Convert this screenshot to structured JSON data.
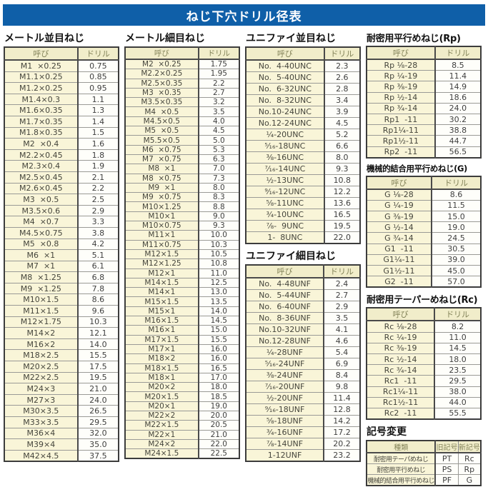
{
  "title": "ねじ下穴ドリル径表",
  "colors": {
    "banner_blue": "#0f5fa8",
    "name_cell_bg": "#f9f5d8",
    "header_cell_bg": "#f1edca",
    "border_dark": "#3c3c3c"
  },
  "tables": {
    "metric_coarse": {
      "title": "メートル並目ねじ",
      "headers": [
        "呼び",
        "ドリル"
      ],
      "rows": [
        [
          "M1  ×0.25",
          "0.75"
        ],
        [
          "M1.1×0.25",
          "0.85"
        ],
        [
          "M1.2×0.25",
          "0.95"
        ],
        [
          "M1.4×0.3",
          "1.1"
        ],
        [
          "M1.6×0.35",
          "1.3"
        ],
        [
          "M1.7×0.35",
          "1.4"
        ],
        [
          "M1.8×0.35",
          "1.5"
        ],
        [
          "M2  ×0.4",
          "1.6"
        ],
        [
          "M2.2×0.45",
          "1.8"
        ],
        [
          "M2.3×0.4",
          "1.9"
        ],
        [
          "M2.5×0.45",
          "2.1"
        ],
        [
          "M2.6×0.45",
          "2.2"
        ],
        [
          "M3  ×0.5",
          "2.5"
        ],
        [
          "M3.5×0.6",
          "2.9"
        ],
        [
          "M4  ×0.7",
          "3.3"
        ],
        [
          "M4.5×0.75",
          "3.8"
        ],
        [
          "M5  ×0.8",
          "4.2"
        ],
        [
          "M6  ×1",
          "5.1"
        ],
        [
          "M7  ×1",
          "6.1"
        ],
        [
          "M8  ×1.25",
          "6.8"
        ],
        [
          "M9  ×1.25",
          "7.8"
        ],
        [
          "M10×1.5",
          "8.6"
        ],
        [
          "M11×1.5",
          "9.6"
        ],
        [
          "M12×1.75",
          "10.3"
        ],
        [
          "M14×2",
          "12.1"
        ],
        [
          "M16×2",
          "14.0"
        ],
        [
          "M18×2.5",
          "15.5"
        ],
        [
          "M20×2.5",
          "17.5"
        ],
        [
          "M22×2.5",
          "19.5"
        ],
        [
          "M24×3",
          "21.0"
        ],
        [
          "M27×3",
          "24.0"
        ],
        [
          "M30×3.5",
          "26.5"
        ],
        [
          "M33×3.5",
          "29.5"
        ],
        [
          "M36×4",
          "32.0"
        ],
        [
          "M39×4",
          "35.0"
        ],
        [
          "M42×4.5",
          "37.5"
        ]
      ]
    },
    "metric_fine": {
      "title": "メートル細目ねじ",
      "headers": [
        "呼び",
        "ドリル"
      ],
      "rows": [
        [
          "M2  ×0.25",
          "1.75"
        ],
        [
          "M2.2×0.25",
          "1.95"
        ],
        [
          "M2.5×0.35",
          "2.2"
        ],
        [
          "M3  ×0.35",
          "2.7"
        ],
        [
          "M3.5×0.35",
          "3.2"
        ],
        [
          "M4  ×0.5",
          "3.5"
        ],
        [
          "M4.5×0.5",
          "4.0"
        ],
        [
          "M5  ×0.5",
          "4.5"
        ],
        [
          "M5.5×0.5",
          "5.0"
        ],
        [
          "M6  ×0.75",
          "5.3"
        ],
        [
          "M7  ×0.75",
          "6.3"
        ],
        [
          "M8  ×1",
          "7.0"
        ],
        [
          "M8  ×0.75",
          "7.3"
        ],
        [
          "M9  ×1",
          "8.0"
        ],
        [
          "M9  ×0.75",
          "8.3"
        ],
        [
          "M10×1.25",
          "8.8"
        ],
        [
          "M10×1",
          "9.0"
        ],
        [
          "M10×0.75",
          "9.3"
        ],
        [
          "M11×1",
          "10.0"
        ],
        [
          "M11×0.75",
          "10.3"
        ],
        [
          "M12×1.5",
          "10.5"
        ],
        [
          "M12×1.25",
          "10.8"
        ],
        [
          "M12×1",
          "11.0"
        ],
        [
          "M14×1.5",
          "12.5"
        ],
        [
          "M14×1",
          "13.0"
        ],
        [
          "M15×1.5",
          "13.5"
        ],
        [
          "M15×1",
          "14.0"
        ],
        [
          "M16×1.5",
          "14.5"
        ],
        [
          "M16×1",
          "15.0"
        ],
        [
          "M17×1.5",
          "15.5"
        ],
        [
          "M17×1",
          "16.0"
        ],
        [
          "M18×2",
          "16.0"
        ],
        [
          "M18×1.5",
          "16.5"
        ],
        [
          "M18×1",
          "17.0"
        ],
        [
          "M20×2",
          "18.0"
        ],
        [
          "M20×1.5",
          "18.5"
        ],
        [
          "M20×1",
          "19.0"
        ],
        [
          "M22×2",
          "20.0"
        ],
        [
          "M22×1.5",
          "20.5"
        ],
        [
          "M22×1",
          "21.0"
        ],
        [
          "M24×2",
          "22.0"
        ],
        [
          "M24×1.5",
          "22.5"
        ]
      ]
    },
    "unified_coarse": {
      "title": "ユニファイ並目ねじ",
      "headers": [
        "呼び",
        "ドリル"
      ],
      "rows": [
        [
          "No.  4-40UNC",
          "2.3"
        ],
        [
          "No.  5-40UNC",
          "2.6"
        ],
        [
          "No.  6-32UNC",
          "2.8"
        ],
        [
          "No.  8-32UNC",
          "3.4"
        ],
        [
          "No.10-24UNC",
          "3.9"
        ],
        [
          "No.12-24UNC",
          "4.5"
        ],
        [
          "¼-20UNC",
          "5.2"
        ],
        [
          "⁵⁄₁₆-18UNC",
          "6.6"
        ],
        [
          "⅜-16UNC",
          "8.0"
        ],
        [
          "⁷⁄₁₆-14UNC",
          "9.3"
        ],
        [
          "½-13UNC",
          "10.8"
        ],
        [
          "⁹⁄₁₆-12UNC",
          "12.2"
        ],
        [
          "⅝-11UNC",
          "13.6"
        ],
        [
          "¾-10UNC",
          "16.5"
        ],
        [
          "⅞-  9UNC",
          "19.5"
        ],
        [
          "1-  8UNC",
          "22.0"
        ]
      ]
    },
    "unified_fine": {
      "title": "ユニファイ細目ねじ",
      "headers": [
        "呼び",
        "ドリル"
      ],
      "rows": [
        [
          "No.  4-48UNF",
          "2.4"
        ],
        [
          "No.  5-44UNF",
          "2.7"
        ],
        [
          "No.  6-40UNF",
          "2.9"
        ],
        [
          "No.  8-36UNF",
          "3.5"
        ],
        [
          "No.10-32UNF",
          "4.1"
        ],
        [
          "No.12-28UNF",
          "4.6"
        ],
        [
          "¼-28UNF",
          "5.4"
        ],
        [
          "⁵⁄₁₆-24UNF",
          "6.9"
        ],
        [
          "⅜-24UNF",
          "8.4"
        ],
        [
          "⁷⁄₁₆-20UNF",
          "9.8"
        ],
        [
          "½-20UNF",
          "11.4"
        ],
        [
          "⁹⁄₁₆-18UNF",
          "12.8"
        ],
        [
          "⅝-18UNF",
          "14.2"
        ],
        [
          "¾-16UNF",
          "17.2"
        ],
        [
          "⅞-14UNF",
          "20.2"
        ],
        [
          "1-12UNF",
          "23.2"
        ]
      ]
    },
    "rp": {
      "title": "耐密用平行めねじ(Rp)",
      "headers": [
        "呼び",
        "ドリル"
      ],
      "rows": [
        [
          "Rp ⅛-28",
          "8.5"
        ],
        [
          "Rp ¼-19",
          "11.4"
        ],
        [
          "Rp ⅜-19",
          "14.9"
        ],
        [
          "Rp ½-14",
          "18.6"
        ],
        [
          "Rp ¾-14",
          "24.0"
        ],
        [
          "Rp1  -11",
          "30.2"
        ],
        [
          "Rp1¼-11",
          "38.8"
        ],
        [
          "Rp1½-11",
          "44.7"
        ],
        [
          "Rp2  -11",
          "56.5"
        ]
      ]
    },
    "g": {
      "title": "機械的結合用平行めねじ(G)",
      "headers": [
        "呼び",
        "ドリル"
      ],
      "rows": [
        [
          "G ⅛-28",
          "8.6"
        ],
        [
          "G ¼-19",
          "11.5"
        ],
        [
          "G ⅜-19",
          "15.0"
        ],
        [
          "G ½-14",
          "19.0"
        ],
        [
          "G ¾-14",
          "24.5"
        ],
        [
          "G1  -11",
          "30.5"
        ],
        [
          "G1¼-11",
          "39.0"
        ],
        [
          "G1½-11",
          "45.0"
        ],
        [
          "G2  -11",
          "57.0"
        ]
      ]
    },
    "rc": {
      "title": "耐密用テーパーめねじ(Rc)",
      "headers": [
        "呼び",
        "ドリル"
      ],
      "rows": [
        [
          "Rc ⅛-28",
          "8.2"
        ],
        [
          "Rc ¼-19",
          "11.0"
        ],
        [
          "Rc ⅜-19",
          "14.5"
        ],
        [
          "Rc ½-14",
          "18.0"
        ],
        [
          "Rc ¾-14",
          "23.5"
        ],
        [
          "Rc1  -11",
          "29.5"
        ],
        [
          "Rc1¼-11",
          "38.0"
        ],
        [
          "Rc1½-11",
          "44.0"
        ],
        [
          "Rc2  -11",
          "55.5"
        ]
      ]
    },
    "symbol_change": {
      "title": "記号変更",
      "headers": [
        "種類",
        "旧記号",
        "新記号"
      ],
      "rows": [
        [
          "耐密用テーパめねじ",
          "PT",
          "Rc"
        ],
        [
          "耐密用平行めねじ",
          "PS",
          "Rp"
        ],
        [
          "機械的結合用平行めねじ",
          "PF",
          "G"
        ]
      ]
    }
  }
}
